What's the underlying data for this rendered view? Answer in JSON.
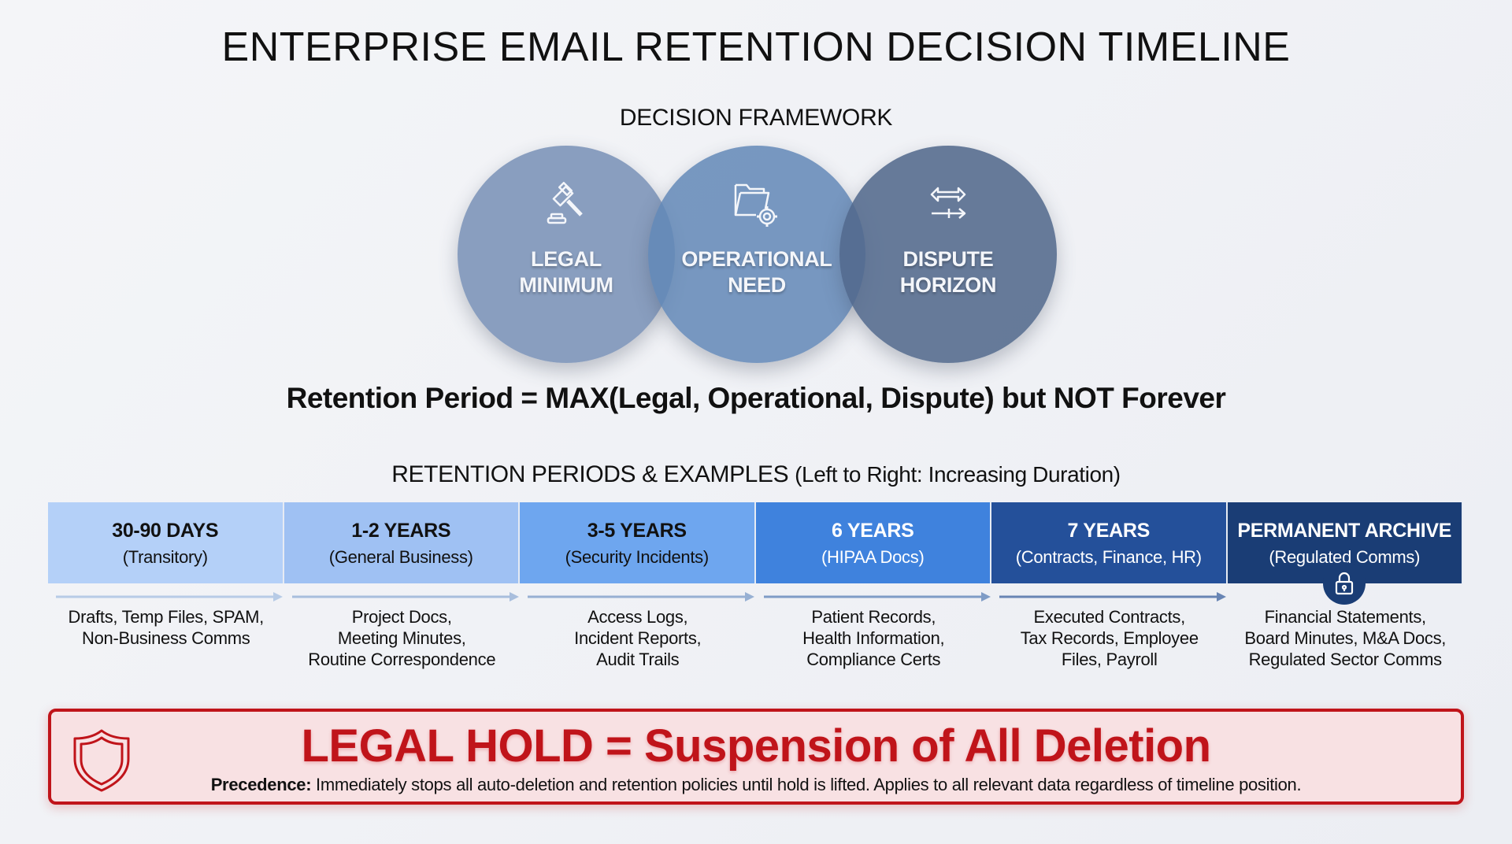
{
  "title": "ENTERPRISE EMAIL RETENTION DECISION TIMELINE",
  "framework": {
    "heading": "DECISION FRAMEWORK",
    "circles": [
      {
        "line1": "LEGAL",
        "line2": "MINIMUM",
        "icon": "gavel-icon"
      },
      {
        "line1": "OPERATIONAL",
        "line2": "NEED",
        "icon": "folder-gear-icon"
      },
      {
        "line1": "DISPUTE",
        "line2": "HORIZON",
        "icon": "bidirectional-arrows-icon"
      }
    ]
  },
  "formula": "Retention Period = MAX(Legal, Operational, Dispute) but NOT Forever",
  "periods": {
    "heading": "RETENTION PERIODS & EXAMPLES",
    "heading_note": "(Left to Right: Increasing Duration)",
    "items": [
      {
        "title": "30-90 DAYS",
        "sub": "(Transitory)",
        "color": "#b4d0f8",
        "examples": [
          "Drafts, Temp Files, SPAM,",
          "Non-Business Comms"
        ]
      },
      {
        "title": "1-2 YEARS",
        "sub": "(General Business)",
        "color": "#9fc1f3",
        "examples": [
          "Project Docs,",
          "Meeting Minutes,",
          "Routine Correspondence"
        ]
      },
      {
        "title": "3-5 YEARS",
        "sub": "(Security Incidents)",
        "color": "#6ea6ef",
        "examples": [
          "Access Logs,",
          "Incident Reports,",
          "Audit Trails"
        ]
      },
      {
        "title": "6 YEARS",
        "sub": "(HIPAA Docs)",
        "color": "#3f82dd",
        "examples": [
          "Patient Records,",
          "Health Information,",
          "Compliance Certs"
        ]
      },
      {
        "title": "7 YEARS",
        "sub": "(Contracts, Finance, HR)",
        "color": "#24509a",
        "examples": [
          "Executed Contracts,",
          "Tax Records, Employee",
          "Files, Payroll"
        ]
      },
      {
        "title": "PERMANENT ARCHIVE",
        "sub": "(Regulated Comms)",
        "color": "#1a3d75",
        "icon": "lock-icon",
        "examples": [
          "Financial Statements,",
          "Board Minutes, M&A Docs,",
          "Regulated Sector Comms"
        ]
      }
    ]
  },
  "legal_hold": {
    "title": "LEGAL HOLD = Suspension of All Deletion",
    "label": "Precedence:",
    "text": " Immediately stops all auto-deletion and retention policies until hold is lifted. Applies to all relevant data regardless of timeline position.",
    "color": "#c0141a",
    "icon": "shield-icon"
  }
}
